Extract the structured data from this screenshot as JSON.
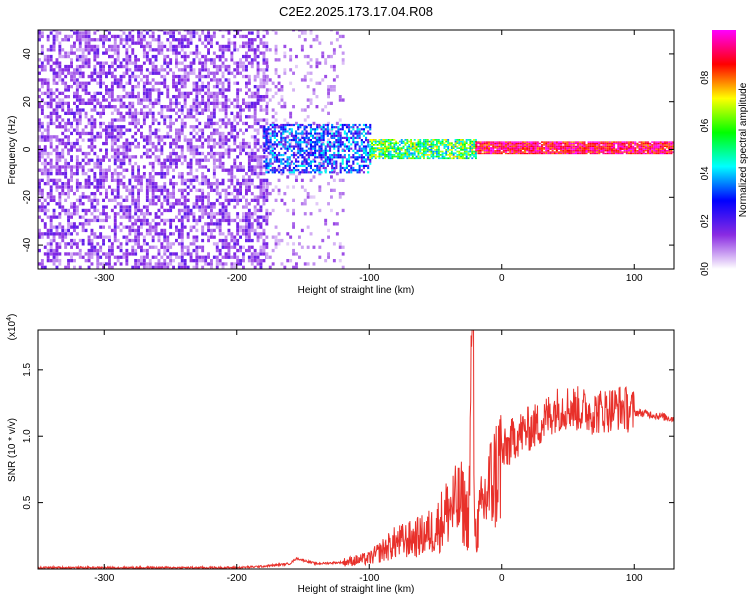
{
  "figure_title": "C2E2.2025.173.17.04.R08",
  "chart_data": [
    {
      "type": "heatmap",
      "xlabel": "Height of straight line (km)",
      "ylabel": "Frequency (Hz)",
      "xlim": [
        -350,
        130
      ],
      "ylim": [
        -50,
        50
      ],
      "x_ticks": [
        -300,
        -200,
        -100,
        0,
        100
      ],
      "y_ticks": [
        -40,
        -20,
        0,
        20,
        40
      ],
      "colorbar": {
        "label": "Normalized spectral amplitude",
        "range": [
          0.0,
          1.0
        ],
        "ticks": [
          "0.0",
          "0.2",
          "0.4",
          "0.6",
          "0.8"
        ],
        "colormap": [
          "#ffffff",
          "#8a2be2",
          "#0000ff",
          "#00ffff",
          "#00ff00",
          "#ffff00",
          "#ff0000",
          "#ff00ff"
        ]
      },
      "features": [
        {
          "region": "noise",
          "x_range": [
            -350,
            -178
          ],
          "freq_range": [
            -50,
            50
          ],
          "amplitude": 0.12
        },
        {
          "region": "sparse noise",
          "x_range": [
            -178,
            -120
          ],
          "freq_range": [
            -50,
            50
          ],
          "amplitude": 0.08
        },
        {
          "region": "broad signal",
          "x_range": [
            -180,
            -100
          ],
          "freq_range": [
            -10,
            10
          ],
          "amplitude": 0.3
        },
        {
          "region": "narrowing signal",
          "x_range": [
            -100,
            -20
          ],
          "freq_range": [
            -4,
            4
          ],
          "amplitude": 0.55
        },
        {
          "region": "strong band",
          "x_range": [
            -20,
            130
          ],
          "freq_range": [
            -2,
            3
          ],
          "amplitude": 0.9
        }
      ]
    },
    {
      "type": "line",
      "xlabel": "Height of straight line (km)",
      "ylabel": "SNR (10 * v/v)",
      "y_multiplier": "(x10",
      "y_multiplier_exp": "4",
      "y_multiplier_close": ")",
      "xlim": [
        -350,
        130
      ],
      "ylim": [
        0,
        1.8
      ],
      "x_ticks": [
        -300,
        -200,
        -100,
        0,
        100
      ],
      "y_ticks": [
        0.5,
        1.0,
        1.5
      ],
      "y_tick_labels": [
        "0.5",
        "1.0",
        "1.5"
      ],
      "color": "#e8302a",
      "series": [
        {
          "x": [
            -350,
            -300,
            -250,
            -200,
            -180,
            -160,
            -155,
            -140,
            -120,
            -100,
            -90,
            -80,
            -70,
            -60,
            -50,
            -40,
            -30,
            -25,
            -22,
            -20,
            -15,
            -10,
            -5,
            0,
            10,
            20,
            30,
            40,
            50,
            60,
            70,
            80,
            90,
            100,
            110,
            120,
            130
          ],
          "y": [
            0.01,
            0.01,
            0.01,
            0.01,
            0.02,
            0.04,
            0.08,
            0.04,
            0.05,
            0.08,
            0.14,
            0.2,
            0.22,
            0.25,
            0.3,
            0.45,
            0.5,
            0.35,
            1.75,
            0.25,
            0.45,
            0.6,
            0.7,
            0.85,
            1.0,
            1.05,
            1.1,
            1.2,
            1.22,
            1.2,
            1.18,
            1.2,
            1.22,
            1.18,
            1.17,
            1.15,
            1.13
          ]
        }
      ]
    }
  ]
}
